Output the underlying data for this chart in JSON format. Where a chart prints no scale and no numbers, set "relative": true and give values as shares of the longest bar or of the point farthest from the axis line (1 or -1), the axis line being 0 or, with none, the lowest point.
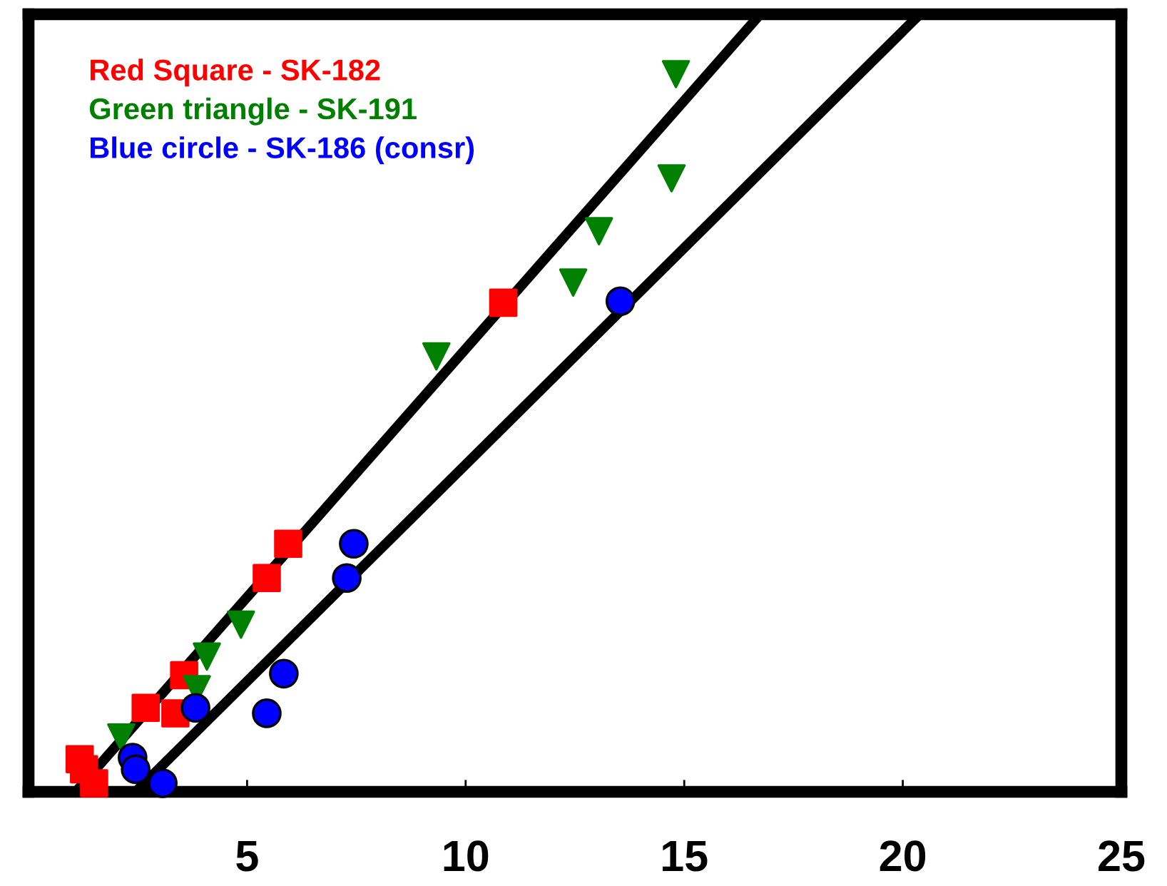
{
  "chart_data": {
    "type": "scatter",
    "relative": true,
    "xlim": [
      0,
      25
    ],
    "xticks": [
      5,
      10,
      15,
      20,
      25
    ],
    "tick_labels": "x",
    "legend": false,
    "grid": false,
    "series": [
      {
        "name": "Red Square - SK-182",
        "color": "#ff0000",
        "marker": "square",
        "x": [
          1.17,
          1.27,
          1.5,
          2.68,
          3.36,
          3.56,
          5.45,
          5.94,
          10.86
        ],
        "values": [
          0.042,
          0.029,
          0.011,
          0.108,
          0.101,
          0.15,
          0.275,
          0.319,
          0.629
        ]
      },
      {
        "name": "Green triangle - SK-191",
        "color": "#008000",
        "marker": "triangle",
        "x": [
          2.12,
          3.85,
          4.08,
          4.86,
          9.33,
          12.46,
          13.05,
          14.71,
          14.81
        ],
        "values": [
          0.07,
          0.132,
          0.174,
          0.215,
          0.56,
          0.655,
          0.721,
          0.789,
          0.923
        ]
      },
      {
        "name": "Blue circle - SK-186 (consr)",
        "color": "#0000ff",
        "marker": "circle",
        "x": [
          2.38,
          2.45,
          3.07,
          3.82,
          5.45,
          5.84,
          7.28,
          7.44,
          13.54
        ],
        "values": [
          0.044,
          0.029,
          0.011,
          0.108,
          0.101,
          0.152,
          0.275,
          0.319,
          0.631
        ]
      },
      {
        "type": "line",
        "color": "#000000",
        "marker": "none",
        "line_style": "solid",
        "x": [
          1.08,
          16.74
        ],
        "values": [
          0,
          1
        ]
      },
      {
        "type": "line",
        "color": "#000000",
        "marker": "none",
        "line_style": "solid",
        "x": [
          2.45,
          20.39
        ],
        "values": [
          0,
          1
        ]
      }
    ]
  }
}
